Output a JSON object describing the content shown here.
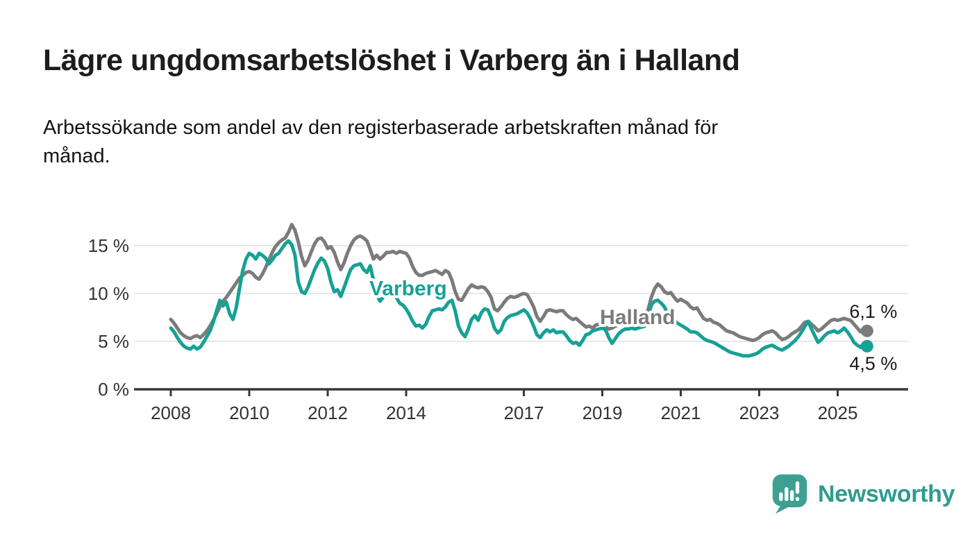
{
  "header": {
    "title": "Lägre ungdomsarbetslöshet i Varberg än i Halland",
    "subtitle_line1": "Arbetssökande som andel av den registerbaserade arbetskraften månad för",
    "subtitle_line2": "månad."
  },
  "chart_data": {
    "type": "line",
    "unit": "percent",
    "frequency": "monthly",
    "start": "2008-01",
    "end": "2025-10",
    "grid": "horizontal",
    "x_tick_years": [
      2008,
      2010,
      2012,
      2014,
      2017,
      2019,
      2021,
      2023,
      2025
    ],
    "y_ticks": [
      0,
      5,
      10,
      15
    ],
    "y_tick_labels": [
      "0 %",
      "5 %",
      "10 %",
      "15 %"
    ],
    "ylim": [
      0,
      17.5
    ],
    "xlim_years": [
      2007.05,
      2026.8
    ],
    "series": [
      {
        "name": "Halland",
        "color": "#7b7b7b",
        "end_label": "6,1 %",
        "end_label_position": "above",
        "inline_label": {
          "text": "Halland",
          "year": 2019.9,
          "value": 7.55
        },
        "values": [
          7.3,
          6.9,
          6.4,
          5.9,
          5.6,
          5.4,
          5.3,
          5.5,
          5.6,
          5.4,
          5.7,
          6.1,
          6.6,
          7.2,
          7.9,
          8.6,
          9.2,
          9.6,
          10.1,
          10.6,
          11.1,
          11.6,
          11.9,
          12.2,
          12.3,
          12.1,
          11.7,
          11.5,
          12.0,
          12.7,
          13.5,
          14.3,
          14.9,
          15.3,
          15.6,
          15.8,
          16.4,
          17.2,
          16.6,
          15.4,
          13.9,
          12.9,
          13.5,
          14.4,
          15.2,
          15.7,
          15.8,
          15.4,
          14.7,
          14.9,
          14.3,
          13.3,
          12.5,
          13.2,
          14.2,
          15.0,
          15.6,
          15.9,
          16.0,
          15.8,
          15.5,
          14.6,
          13.6,
          14.0,
          13.6,
          13.9,
          14.3,
          14.3,
          14.4,
          14.2,
          14.4,
          14.3,
          14.2,
          13.7,
          12.8,
          12.2,
          11.9,
          11.9,
          12.1,
          12.2,
          12.3,
          12.4,
          12.2,
          12.0,
          12.4,
          12.2,
          11.4,
          10.2,
          9.4,
          9.3,
          9.9,
          10.5,
          10.9,
          10.7,
          10.6,
          10.7,
          10.6,
          10.2,
          9.6,
          8.4,
          8.2,
          8.6,
          9.1,
          9.5,
          9.7,
          9.6,
          9.7,
          9.9,
          10.0,
          9.9,
          9.3,
          8.6,
          7.6,
          7.1,
          7.6,
          8.2,
          8.3,
          8.2,
          8.1,
          8.2,
          8.2,
          7.8,
          7.5,
          7.3,
          7.4,
          7.1,
          6.8,
          6.5,
          6.6,
          6.4,
          6.7,
          6.8,
          6.7,
          6.5,
          6.3,
          6.4,
          6.6,
          6.7,
          6.9,
          7.0,
          7.0,
          6.9,
          7.0,
          7.1,
          7.2,
          7.4,
          8.3,
          9.6,
          10.5,
          11.0,
          10.7,
          10.2,
          10.0,
          10.1,
          9.6,
          9.2,
          9.4,
          9.2,
          9.0,
          8.6,
          8.4,
          8.5,
          7.9,
          7.4,
          7.2,
          7.3,
          7.0,
          6.9,
          6.7,
          6.4,
          6.1,
          6.0,
          5.9,
          5.7,
          5.5,
          5.4,
          5.3,
          5.2,
          5.1,
          5.2,
          5.4,
          5.7,
          5.9,
          6.0,
          6.1,
          5.9,
          5.5,
          5.2,
          5.3,
          5.5,
          5.8,
          6.0,
          6.2,
          6.6,
          7.0,
          7.1,
          6.8,
          6.5,
          6.1,
          6.3,
          6.6,
          6.9,
          7.2,
          7.3,
          7.2,
          7.3,
          7.4,
          7.3,
          7.2,
          6.8,
          6.4,
          6.0,
          6.4,
          6.1
        ]
      },
      {
        "name": "Varberg",
        "color": "#16a195",
        "end_label": "4,5 %",
        "end_label_position": "below",
        "inline_label": {
          "text": "Varberg",
          "year": 2014.05,
          "value": 10.55
        },
        "values": [
          6.4,
          6.0,
          5.4,
          4.9,
          4.5,
          4.3,
          4.2,
          4.5,
          4.2,
          4.4,
          4.9,
          5.5,
          6.1,
          7.0,
          8.2,
          9.3,
          8.7,
          9.1,
          7.9,
          7.3,
          8.5,
          10.5,
          12.4,
          13.6,
          14.2,
          14.0,
          13.6,
          14.2,
          14.0,
          13.7,
          13.1,
          13.5,
          14.0,
          14.2,
          14.7,
          15.2,
          15.5,
          15.1,
          14.0,
          11.2,
          10.2,
          10.0,
          10.7,
          11.6,
          12.5,
          13.2,
          13.7,
          13.4,
          12.6,
          11.2,
          10.2,
          10.4,
          9.7,
          10.6,
          11.6,
          12.5,
          12.9,
          13.0,
          13.1,
          12.5,
          12.2,
          12.9,
          11.4,
          9.9,
          9.2,
          9.6,
          10.3,
          10.6,
          10.2,
          9.6,
          9.0,
          8.8,
          8.4,
          7.8,
          7.1,
          6.6,
          6.7,
          6.4,
          6.8,
          7.6,
          8.2,
          8.3,
          8.4,
          8.3,
          8.6,
          9.1,
          9.3,
          8.2,
          6.6,
          5.9,
          5.5,
          6.3,
          7.3,
          7.7,
          7.2,
          8.0,
          8.4,
          8.3,
          7.5,
          6.4,
          5.9,
          6.2,
          7.1,
          7.5,
          7.7,
          7.8,
          7.9,
          8.1,
          8.3,
          8.0,
          7.4,
          6.6,
          5.7,
          5.4,
          5.9,
          6.2,
          6.0,
          6.2,
          5.9,
          6.0,
          6.0,
          5.6,
          5.1,
          4.8,
          4.9,
          4.6,
          5.1,
          5.7,
          5.8,
          6.1,
          6.2,
          6.3,
          6.4,
          6.2,
          5.4,
          4.8,
          5.3,
          5.8,
          6.1,
          6.3,
          6.3,
          6.4,
          6.3,
          6.4,
          6.5,
          6.6,
          7.5,
          8.8,
          9.2,
          9.3,
          9.0,
          8.6,
          7.9,
          7.5,
          7.2,
          6.9,
          6.7,
          6.5,
          6.3,
          6.0,
          6.0,
          5.9,
          5.6,
          5.3,
          5.1,
          5.0,
          4.9,
          4.7,
          4.5,
          4.3,
          4.1,
          3.9,
          3.8,
          3.7,
          3.6,
          3.5,
          3.5,
          3.5,
          3.6,
          3.7,
          3.9,
          4.2,
          4.4,
          4.5,
          4.6,
          4.4,
          4.2,
          4.1,
          4.3,
          4.5,
          4.8,
          5.1,
          5.5,
          6.0,
          6.6,
          7.1,
          6.3,
          5.6,
          4.9,
          5.2,
          5.6,
          5.9,
          6.0,
          6.1,
          5.9,
          6.1,
          6.4,
          6.0,
          5.5,
          4.9,
          4.6,
          4.4,
          4.8,
          4.5
        ]
      }
    ]
  },
  "style": {
    "axis_color": "#383838",
    "grid_color": "#d9d9d9",
    "tick_label_color": "#333333",
    "value_label_color": "#1a1a1a"
  },
  "branding": {
    "name": "Newsworthy",
    "text_color": "#2e9c90",
    "logo_color": "#3da092",
    "logo_icon": "speech-bubble-bar-chart-exclamation"
  }
}
